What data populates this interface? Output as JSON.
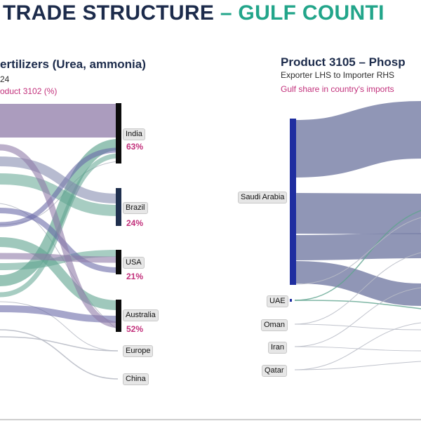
{
  "header": {
    "title_part1": "TRADE STRUCTURE",
    "title_part2": "– GULF COUNTI"
  },
  "left_panel": {
    "title": "ertilizers (Urea, ammonia)",
    "subtitle": "24",
    "share_caption": "oduct 3102 (%)",
    "importers": [
      {
        "name": "India",
        "share": "63%"
      },
      {
        "name": "Brazil",
        "share": "24%"
      },
      {
        "name": "USA",
        "share": "21%"
      },
      {
        "name": "Australia",
        "share": "52%"
      },
      {
        "name": "Europe",
        "share": ""
      },
      {
        "name": "China",
        "share": ""
      }
    ]
  },
  "right_panel": {
    "title": "Product 3105 – Phosp",
    "subtitle": "Exporter LHS to Importer RHS",
    "share_caption": "Gulf share in country's imports",
    "exporters": [
      {
        "name": "Saudi Arabia"
      },
      {
        "name": "UAE"
      },
      {
        "name": "Oman"
      },
      {
        "name": "Iran"
      },
      {
        "name": "Qatar"
      }
    ]
  },
  "colors": {
    "title_dark": "#1c2b4b",
    "title_teal": "#22a58a",
    "share_magenta": "#c2307b",
    "flow_purple": "#8f7ba8",
    "flow_green": "#5fa48f",
    "flow_slate": "#7c84a9",
    "flow_violet": "#5a55a0",
    "node_black": "#0b0b0b",
    "node_navy": "#1f2f4d",
    "node_blue": "#1f2ea0"
  }
}
